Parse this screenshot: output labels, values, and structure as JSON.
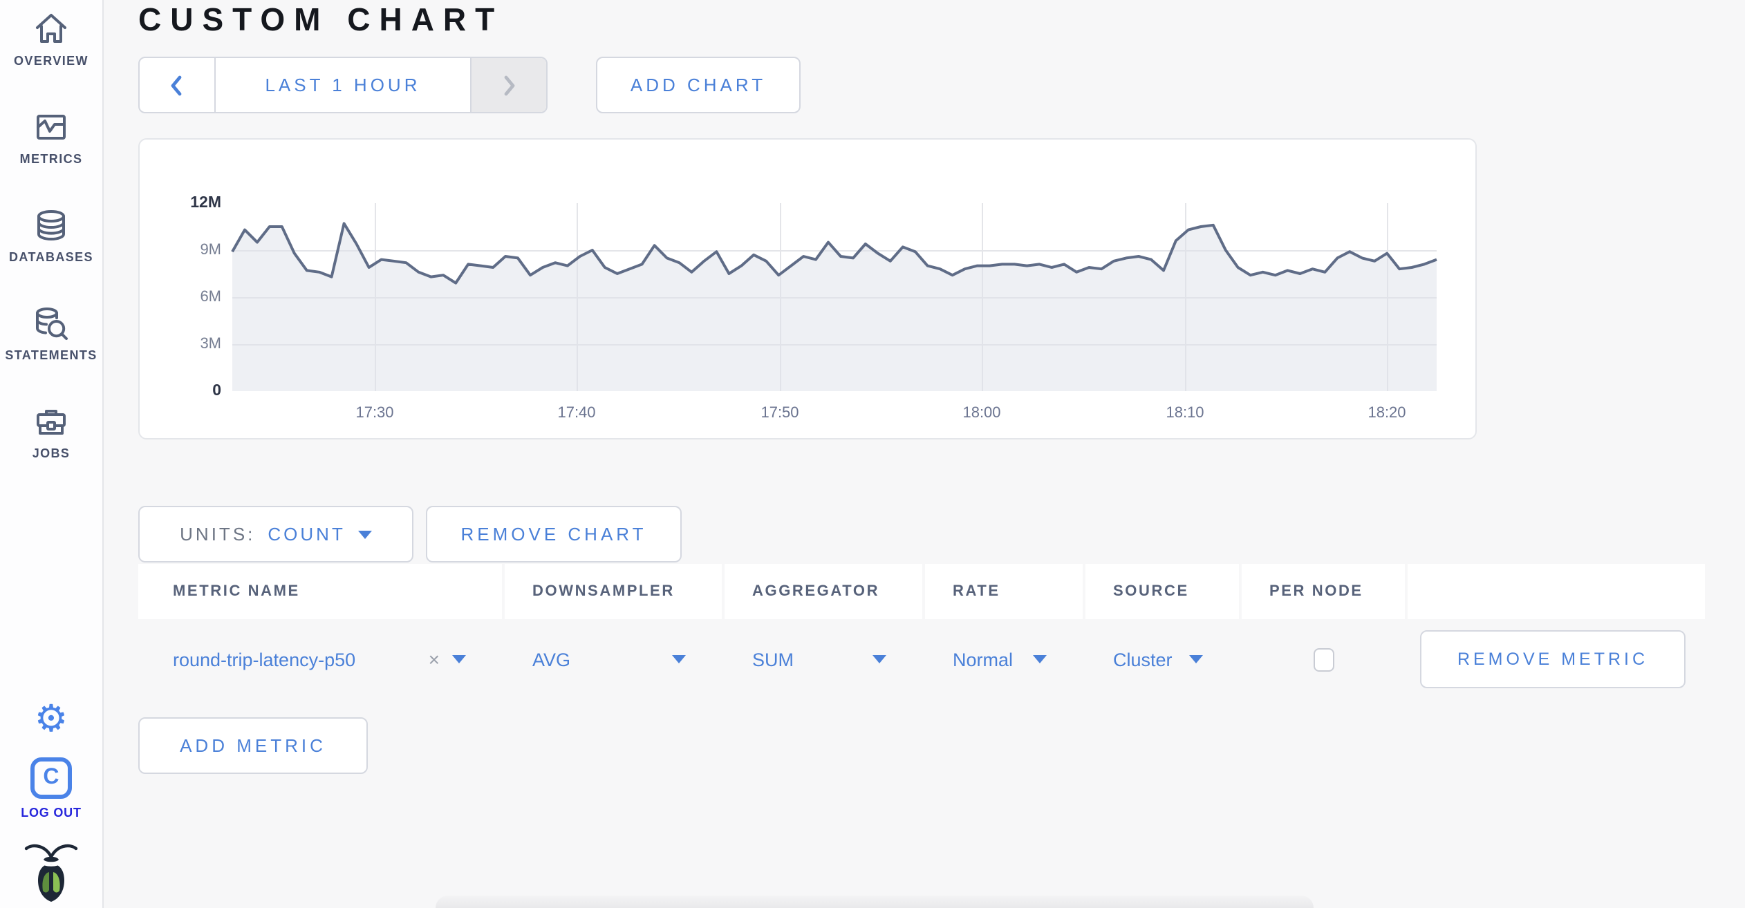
{
  "header": {
    "title": "CUSTOM CHART"
  },
  "sidebar": {
    "items": [
      {
        "label": "OVERVIEW",
        "icon": "home-icon"
      },
      {
        "label": "METRICS",
        "icon": "metrics-icon"
      },
      {
        "label": "DATABASES",
        "icon": "database-icon"
      },
      {
        "label": "STATEMENTS",
        "icon": "statements-icon"
      },
      {
        "label": "JOBS",
        "icon": "jobs-icon"
      }
    ],
    "settings_icon": "gear-icon",
    "gear_glyph": "⚙",
    "logout": {
      "label": "LOG OUT",
      "badge_letter": "C"
    },
    "logo_icon": "cockroach-bug-icon"
  },
  "toolbar": {
    "time_range_label": "LAST 1 HOUR",
    "add_chart_label": "ADD CHART"
  },
  "chart_data": {
    "type": "area",
    "title": "",
    "xlabel": "",
    "ylabel": "count",
    "x_start": "17:23",
    "x_end": "18:23",
    "x_ticks": [
      "17:30",
      "17:40",
      "17:50",
      "18:00",
      "18:10",
      "18:20"
    ],
    "y_ticks_top_down": [
      "12M",
      "9M",
      "6M",
      "3M",
      "0"
    ],
    "ylim_millions": [
      0,
      12
    ],
    "grid": true,
    "legend": "none",
    "values_unit": "millions",
    "series": [
      {
        "name": "round-trip-latency-p50",
        "values": [
          8.9,
          10.3,
          9.5,
          10.5,
          10.5,
          8.8,
          7.7,
          7.6,
          7.3,
          10.7,
          9.4,
          7.9,
          8.4,
          8.3,
          8.2,
          7.6,
          7.3,
          7.4,
          6.9,
          8.1,
          8.0,
          7.9,
          8.6,
          8.5,
          7.4,
          7.9,
          8.2,
          8.0,
          8.6,
          9.0,
          7.9,
          7.5,
          7.8,
          8.1,
          9.3,
          8.5,
          8.2,
          7.6,
          8.3,
          8.9,
          7.5,
          8.0,
          8.7,
          8.3,
          7.4,
          8.0,
          8.6,
          8.4,
          9.5,
          8.6,
          8.5,
          9.4,
          8.8,
          8.3,
          9.2,
          8.9,
          8.0,
          7.8,
          7.4,
          7.8,
          8.0,
          8.0,
          8.1,
          8.1,
          8.0,
          8.1,
          7.9,
          8.1,
          7.6,
          7.9,
          7.8,
          8.3,
          8.5,
          8.6,
          8.4,
          7.7,
          9.6,
          10.3,
          10.5,
          10.6,
          9.0,
          7.9,
          7.4,
          7.6,
          7.4,
          7.7,
          7.5,
          7.8,
          7.6,
          8.5,
          8.9,
          8.5,
          8.3,
          8.8,
          7.8,
          7.9,
          8.1,
          8.4
        ]
      }
    ]
  },
  "chart_controls": {
    "units_label": "UNITS:",
    "units_value": "COUNT",
    "remove_chart_label": "REMOVE CHART"
  },
  "metrics_table": {
    "columns": [
      "METRIC NAME",
      "DOWNSAMPLER",
      "AGGREGATOR",
      "RATE",
      "SOURCE",
      "PER NODE",
      ""
    ],
    "rows": [
      {
        "metric_name": "round-trip-latency-p50",
        "clear_glyph": "×",
        "downsampler": "AVG",
        "aggregator": "SUM",
        "rate": "Normal",
        "source": "Cluster",
        "per_node_checked": false,
        "remove_label": "REMOVE METRIC"
      }
    ],
    "add_metric_label": "ADD METRIC"
  },
  "colors": {
    "accent_blue": "#4a80d8",
    "logout_blue": "#2726dc",
    "sidebar_icon": "#556179",
    "chart_line": "#5f6c87",
    "chart_fill": "#dde1ea",
    "page_bg": "#f7f7f8"
  }
}
